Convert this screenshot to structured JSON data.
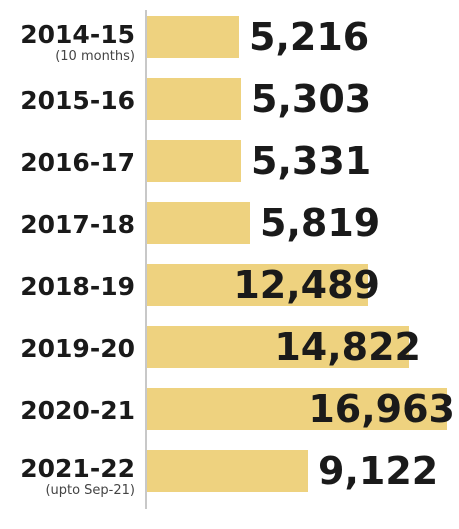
{
  "chart_data": {
    "type": "bar",
    "orientation": "horizontal",
    "categories": [
      "2014-15",
      "2015-16",
      "2016-17",
      "2017-18",
      "2018-19",
      "2019-20",
      "2020-21",
      "2021-22"
    ],
    "category_notes": [
      "(10 months)",
      "",
      "",
      "",
      "",
      "",
      "",
      "(upto Sep-21)"
    ],
    "values": [
      5216,
      5303,
      5331,
      5819,
      12489,
      14822,
      16963,
      9122
    ],
    "value_labels": [
      "5,216",
      "5,303",
      "5,331",
      "5,819",
      "12,489",
      "14,822",
      "16,963",
      "9,122"
    ],
    "xlim": [
      0,
      17500
    ],
    "bar_color": "#eed27f",
    "grid": false,
    "legend": "none"
  }
}
